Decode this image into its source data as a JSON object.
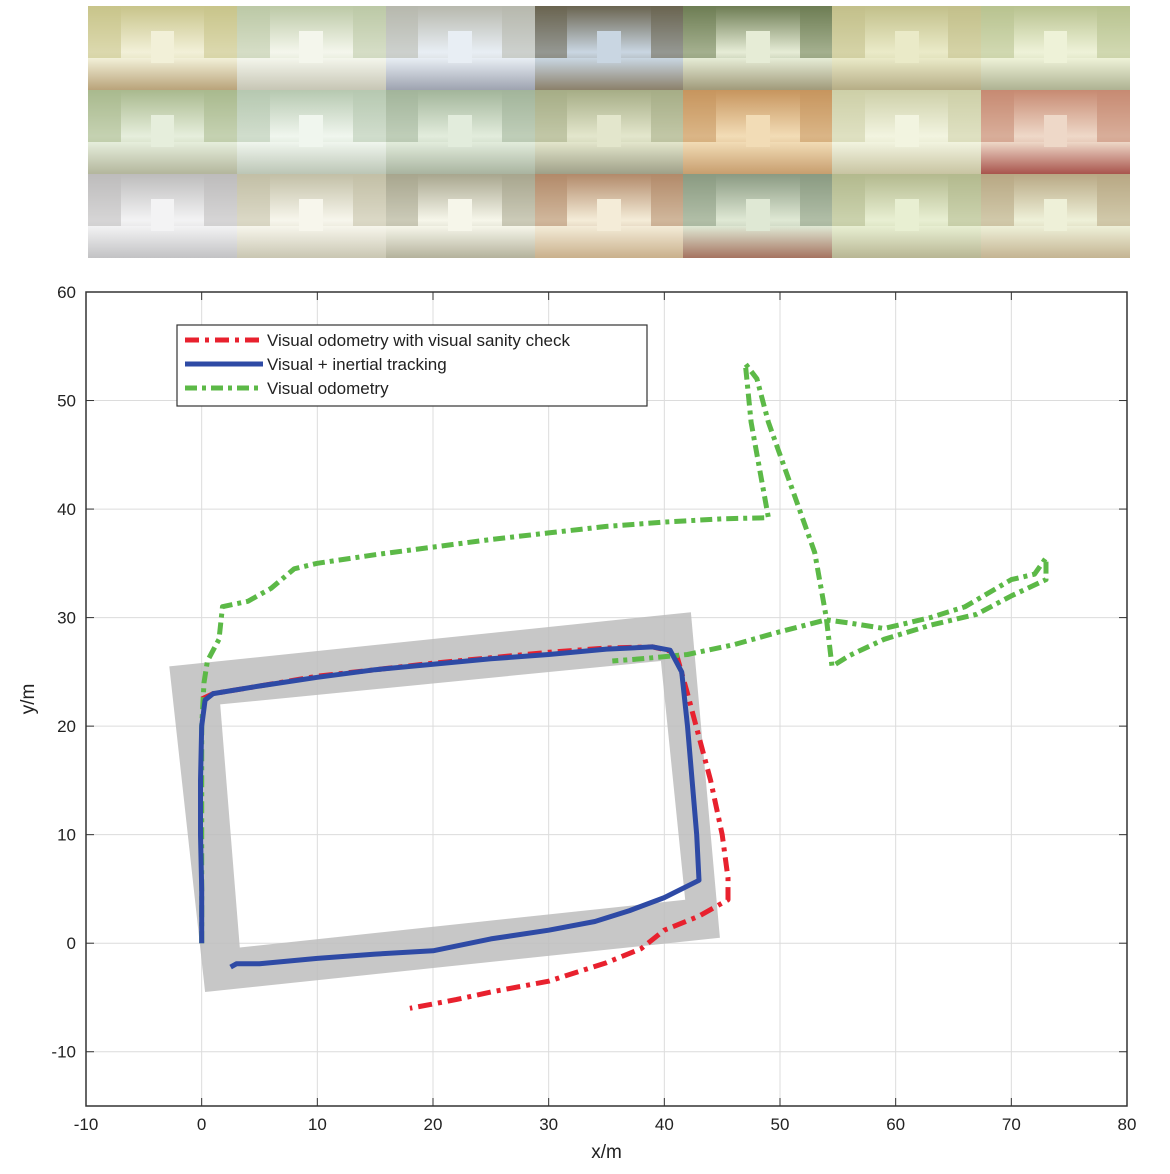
{
  "thumbnails": {
    "rows": 3,
    "cols": 7,
    "tones": [
      {
        "wall": "#c8c48a",
        "floor": "#b9a37a",
        "end": "#f2f0d8"
      },
      {
        "wall": "#bcc9a6",
        "floor": "#c7c6b5",
        "end": "#f4f6ec"
      },
      {
        "wall": "#b7b8ad",
        "floor": "#9ea3b0",
        "end": "#e8eef4"
      },
      {
        "wall": "#6a6450",
        "floor": "#8b806a",
        "end": "#c9d6e2"
      },
      {
        "wall": "#6e7d54",
        "floor": "#a09a7a",
        "end": "#e6ecd6"
      },
      {
        "wall": "#c2c08a",
        "floor": "#b6ad86",
        "end": "#eaeac8"
      },
      {
        "wall": "#b8c28f",
        "floor": "#aeb292",
        "end": "#eef2d8"
      },
      {
        "wall": "#a9b98e",
        "floor": "#b3b69c",
        "end": "#e6eedc"
      },
      {
        "wall": "#b6c8b0",
        "floor": "#bcc6b6",
        "end": "#f0f6ee"
      },
      {
        "wall": "#a2b59a",
        "floor": "#a9b4a0",
        "end": "#e2ecdc"
      },
      {
        "wall": "#a6ad86",
        "floor": "#9fa088",
        "end": "#e3e6cc"
      },
      {
        "wall": "#c7955e",
        "floor": "#c79e6e",
        "end": "#f2dcb6"
      },
      {
        "wall": "#cdcfa8",
        "floor": "#c8c4a2",
        "end": "#f2f4e0"
      },
      {
        "wall": "#c78a72",
        "floor": "#a8544c",
        "end": "#eed8c8"
      },
      {
        "wall": "#bdbcbc",
        "floor": "#c2c2c4",
        "end": "#f3f3f4"
      },
      {
        "wall": "#c2bfa6",
        "floor": "#c9c6b2",
        "end": "#f7f6ec"
      },
      {
        "wall": "#a8a68e",
        "floor": "#b4b29c",
        "end": "#f6f6ea"
      },
      {
        "wall": "#b28a6a",
        "floor": "#c9b08c",
        "end": "#f4ecd8"
      },
      {
        "wall": "#8a9a82",
        "floor": "#a57360",
        "end": "#dfe8d4"
      },
      {
        "wall": "#b3b98e",
        "floor": "#b8b694",
        "end": "#e8efd2"
      },
      {
        "wall": "#b8a884",
        "floor": "#c4b492",
        "end": "#eef0d8"
      }
    ]
  },
  "chart_data": {
    "type": "line",
    "xlabel": "x/m",
    "ylabel": "y/m",
    "xlim": [
      -10,
      80
    ],
    "ylim": [
      -15,
      60
    ],
    "xticks": [
      -10,
      0,
      10,
      20,
      30,
      40,
      50,
      60,
      70,
      80
    ],
    "yticks": [
      -10,
      0,
      10,
      20,
      30,
      40,
      50,
      60
    ],
    "grid": true,
    "legend_position": "top-left",
    "ground_truth_band": {
      "color": "#bdbdbd",
      "outer": [
        [
          -2.8,
          25.5
        ],
        [
          42.3,
          30.5
        ],
        [
          44.8,
          0.5
        ],
        [
          0.3,
          -4.5
        ]
      ],
      "inner": [
        [
          1.6,
          22.0
        ],
        [
          39.7,
          26.0
        ],
        [
          41.8,
          4.0
        ],
        [
          3.3,
          -0.4
        ]
      ]
    },
    "series": [
      {
        "name": "Visual odometry with visual sanity check",
        "color": "#e8212e",
        "dash": "14,6,4,6",
        "points": [
          [
            0,
            22.5
          ],
          [
            1,
            23
          ],
          [
            5,
            23.7
          ],
          [
            10,
            24.6
          ],
          [
            15,
            25.2
          ],
          [
            20,
            25.8
          ],
          [
            25,
            26.3
          ],
          [
            30,
            26.8
          ],
          [
            35,
            27.2
          ],
          [
            39,
            27.3
          ],
          [
            41,
            26.8
          ],
          [
            42,
            23
          ],
          [
            43,
            19
          ],
          [
            44,
            15
          ],
          [
            45,
            10
          ],
          [
            45.5,
            6
          ],
          [
            45.5,
            4
          ],
          [
            43,
            2.5
          ],
          [
            40,
            1.2
          ],
          [
            38,
            -0.5
          ],
          [
            35,
            -1.8
          ],
          [
            30,
            -3.5
          ],
          [
            25,
            -4.5
          ],
          [
            22,
            -5.2
          ],
          [
            20,
            -5.6
          ],
          [
            18,
            -6
          ]
        ]
      },
      {
        "name": "Visual + inertial tracking",
        "color": "#2e4aa5",
        "dash": "",
        "points": [
          [
            0,
            0
          ],
          [
            0,
            5
          ],
          [
            -0.1,
            10
          ],
          [
            -0.1,
            15
          ],
          [
            0,
            20
          ],
          [
            0.3,
            22.4
          ],
          [
            1,
            23
          ],
          [
            5,
            23.7
          ],
          [
            10,
            24.5
          ],
          [
            15,
            25.2
          ],
          [
            20,
            25.7
          ],
          [
            25,
            26.2
          ],
          [
            30,
            26.6
          ],
          [
            35,
            27.1
          ],
          [
            39,
            27.3
          ],
          [
            40.5,
            27
          ],
          [
            41.5,
            25
          ],
          [
            42,
            20
          ],
          [
            42.4,
            15
          ],
          [
            42.8,
            10
          ],
          [
            43,
            5.8
          ],
          [
            40,
            4.2
          ],
          [
            37,
            3
          ],
          [
            34,
            2
          ],
          [
            30,
            1.2
          ],
          [
            25,
            0.4
          ],
          [
            20,
            -0.7
          ],
          [
            15,
            -1
          ],
          [
            10,
            -1.4
          ],
          [
            5,
            -1.9
          ],
          [
            3,
            -1.9
          ],
          [
            2.5,
            -2.2
          ]
        ]
      },
      {
        "name": "Visual odometry",
        "color": "#5cb947",
        "dash": "12,5,4,5",
        "points": [
          [
            0,
            0
          ],
          [
            0,
            10
          ],
          [
            0,
            20
          ],
          [
            0.2,
            24
          ],
          [
            0.5,
            26
          ],
          [
            1.5,
            28
          ],
          [
            1.8,
            31
          ],
          [
            4,
            31.5
          ],
          [
            6,
            32.7
          ],
          [
            8,
            34.5
          ],
          [
            10,
            35
          ],
          [
            15,
            35.8
          ],
          [
            20,
            36.5
          ],
          [
            25,
            37.2
          ],
          [
            30,
            37.8
          ],
          [
            35,
            38.4
          ],
          [
            40,
            38.8
          ],
          [
            45,
            39.1
          ],
          [
            49,
            39.2
          ],
          [
            47.5,
            48
          ],
          [
            47,
            53.4
          ],
          [
            48,
            52
          ],
          [
            49,
            48
          ],
          [
            51,
            42
          ],
          [
            53,
            36
          ],
          [
            54,
            30
          ],
          [
            54.5,
            25.5
          ],
          [
            56,
            26.5
          ],
          [
            59,
            28
          ],
          [
            63,
            29.3
          ],
          [
            67,
            30.3
          ],
          [
            70,
            32
          ],
          [
            73,
            33.5
          ],
          [
            73,
            35.5
          ],
          [
            72,
            34
          ],
          [
            70,
            33.5
          ],
          [
            66,
            31
          ],
          [
            63,
            30
          ],
          [
            59,
            29
          ],
          [
            56,
            29.5
          ],
          [
            54,
            29.8
          ],
          [
            50,
            28.7
          ],
          [
            46,
            27.5
          ],
          [
            42,
            26.6
          ],
          [
            38,
            26.2
          ],
          [
            35.5,
            26
          ]
        ]
      }
    ]
  }
}
